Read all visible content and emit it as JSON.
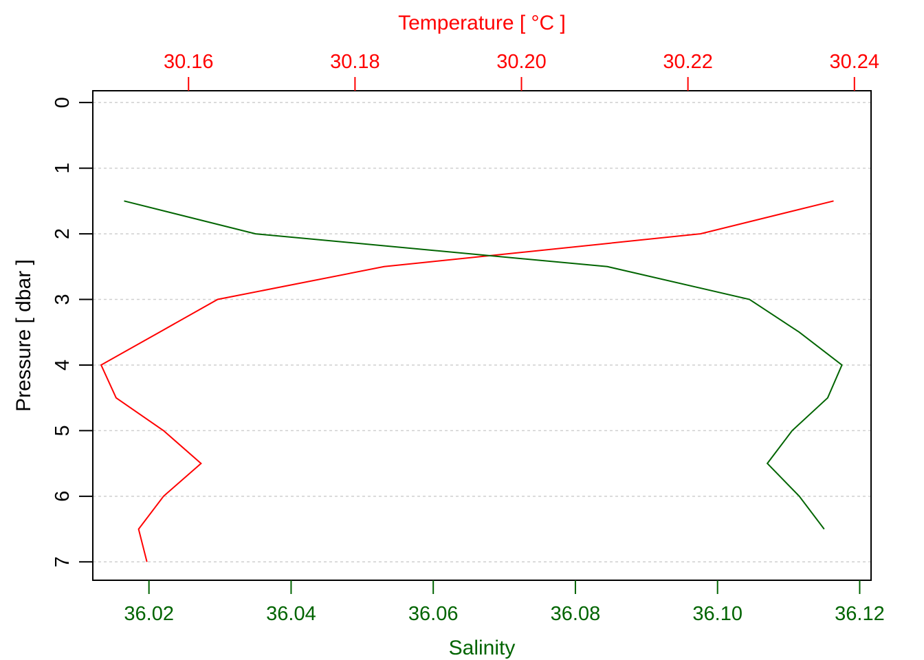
{
  "chart_data": {
    "type": "line",
    "top_axis": {
      "label": "Temperature [ °C ]",
      "ticks": [
        30.16,
        30.18,
        30.2,
        30.22,
        30.24
      ],
      "tick_labels": [
        "30.16",
        "30.18",
        "30.20",
        "30.22",
        "30.24"
      ],
      "range": [
        30.1485,
        30.242
      ],
      "color": "#ff0000"
    },
    "bottom_axis": {
      "label": "Salinity",
      "ticks": [
        36.02,
        36.04,
        36.06,
        36.08,
        36.1,
        36.12
      ],
      "tick_labels": [
        "36.02",
        "36.04",
        "36.06",
        "36.08",
        "36.10",
        "36.12"
      ],
      "range": [
        36.0121,
        36.1216
      ],
      "color": "#006400"
    },
    "y_axis": {
      "label": "Pressure [ dbar ]",
      "ticks": [
        0,
        1,
        2,
        3,
        4,
        5,
        6,
        7
      ],
      "tick_labels": [
        "0",
        "1",
        "2",
        "3",
        "4",
        "5",
        "6",
        "7"
      ],
      "range": [
        -0.18,
        7.28
      ],
      "inverted": true
    },
    "grid": "horizontal dotted",
    "series": [
      {
        "axis": "top",
        "color": "#ff0000",
        "x": [
          30.2375,
          30.2215,
          30.1835,
          30.1635,
          30.1565,
          30.1495,
          30.1513,
          30.157,
          30.1615,
          30.157,
          30.154,
          30.155
        ],
        "y": [
          1.5,
          2.0,
          2.5,
          3.0,
          3.5,
          4.0,
          4.5,
          5.0,
          5.5,
          6.0,
          6.5,
          7.0
        ]
      },
      {
        "axis": "bottom",
        "color": "#006400",
        "x": [
          36.0165,
          36.035,
          36.0845,
          36.1045,
          36.1115,
          36.1175,
          36.1155,
          36.1105,
          36.107,
          36.1115,
          36.115
        ],
        "y": [
          1.5,
          2.0,
          2.5,
          3.0,
          3.5,
          4.0,
          4.5,
          5.0,
          5.5,
          6.0,
          6.5
        ]
      }
    ]
  }
}
